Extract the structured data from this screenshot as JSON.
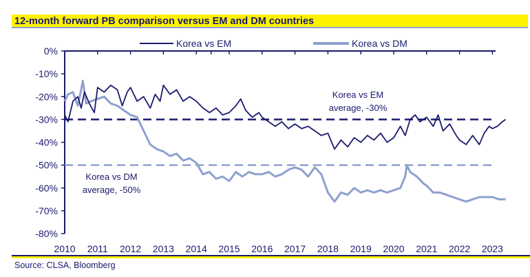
{
  "chart_data": {
    "type": "line",
    "title": "12-month forward PB comparison versus EM and DM countries",
    "source": "Source: CLSA, Bloomberg",
    "xlim": [
      2010,
      2023.5
    ],
    "ylim": [
      -80,
      0
    ],
    "x_ticks": [
      "2010",
      "2011",
      "2012",
      "2013",
      "2014",
      "2015",
      "2016",
      "2017",
      "2018",
      "2019",
      "2020",
      "2021",
      "2022",
      "2023"
    ],
    "y_ticks": [
      "0%",
      "-10%",
      "-20%",
      "-30%",
      "-40%",
      "-50%",
      "-60%",
      "-70%",
      "-80%"
    ],
    "legend": {
      "position": "top",
      "entries": [
        "Korea vs EM",
        "Korea vs DM"
      ]
    },
    "colors": {
      "em": "#1a1a6e",
      "dm": "#8ea0cf"
    },
    "series": [
      {
        "name": "Korea vs EM",
        "average": -30,
        "points": [
          [
            2010.0,
            -28
          ],
          [
            2010.1,
            -31
          ],
          [
            2010.25,
            -22
          ],
          [
            2010.4,
            -20
          ],
          [
            2010.5,
            -25
          ],
          [
            2010.6,
            -18
          ],
          [
            2010.75,
            -23
          ],
          [
            2010.9,
            -27
          ],
          [
            2011.0,
            -16
          ],
          [
            2011.2,
            -18
          ],
          [
            2011.4,
            -15
          ],
          [
            2011.6,
            -17
          ],
          [
            2011.75,
            -24
          ],
          [
            2011.9,
            -18
          ],
          [
            2012.0,
            -16
          ],
          [
            2012.2,
            -22
          ],
          [
            2012.4,
            -20
          ],
          [
            2012.6,
            -25
          ],
          [
            2012.75,
            -19
          ],
          [
            2012.9,
            -22
          ],
          [
            2013.0,
            -15
          ],
          [
            2013.2,
            -19
          ],
          [
            2013.4,
            -17
          ],
          [
            2013.6,
            -22
          ],
          [
            2013.8,
            -20
          ],
          [
            2014.0,
            -22
          ],
          [
            2014.2,
            -25
          ],
          [
            2014.4,
            -27
          ],
          [
            2014.6,
            -25
          ],
          [
            2014.8,
            -28
          ],
          [
            2015.0,
            -27
          ],
          [
            2015.2,
            -24
          ],
          [
            2015.35,
            -21
          ],
          [
            2015.5,
            -26
          ],
          [
            2015.7,
            -29
          ],
          [
            2015.9,
            -27
          ],
          [
            2016.0,
            -29
          ],
          [
            2016.2,
            -31
          ],
          [
            2016.4,
            -33
          ],
          [
            2016.6,
            -31
          ],
          [
            2016.8,
            -34
          ],
          [
            2017.0,
            -32
          ],
          [
            2017.2,
            -34
          ],
          [
            2017.4,
            -33
          ],
          [
            2017.6,
            -35
          ],
          [
            2017.8,
            -37
          ],
          [
            2018.0,
            -36
          ],
          [
            2018.2,
            -43
          ],
          [
            2018.4,
            -39
          ],
          [
            2018.6,
            -42
          ],
          [
            2018.8,
            -38
          ],
          [
            2019.0,
            -40
          ],
          [
            2019.2,
            -37
          ],
          [
            2019.4,
            -39
          ],
          [
            2019.6,
            -36
          ],
          [
            2019.8,
            -40
          ],
          [
            2020.0,
            -38
          ],
          [
            2020.2,
            -33
          ],
          [
            2020.35,
            -37
          ],
          [
            2020.5,
            -30
          ],
          [
            2020.65,
            -28
          ],
          [
            2020.8,
            -31
          ],
          [
            2021.0,
            -29
          ],
          [
            2021.2,
            -33
          ],
          [
            2021.35,
            -28
          ],
          [
            2021.5,
            -35
          ],
          [
            2021.7,
            -32
          ],
          [
            2021.9,
            -37
          ],
          [
            2022.0,
            -39
          ],
          [
            2022.2,
            -41
          ],
          [
            2022.4,
            -37
          ],
          [
            2022.6,
            -41
          ],
          [
            2022.75,
            -36
          ],
          [
            2022.9,
            -33
          ],
          [
            2023.0,
            -34
          ],
          [
            2023.15,
            -33
          ],
          [
            2023.3,
            -31
          ],
          [
            2023.4,
            -30
          ]
        ]
      },
      {
        "name": "Korea vs DM",
        "average": -50,
        "points": [
          [
            2010.0,
            -22
          ],
          [
            2010.1,
            -19
          ],
          [
            2010.25,
            -18
          ],
          [
            2010.4,
            -24
          ],
          [
            2010.5,
            -17
          ],
          [
            2010.55,
            -13
          ],
          [
            2010.65,
            -23
          ],
          [
            2010.8,
            -22
          ],
          [
            2011.0,
            -21
          ],
          [
            2011.2,
            -20
          ],
          [
            2011.4,
            -23
          ],
          [
            2011.6,
            -24
          ],
          [
            2011.8,
            -26
          ],
          [
            2012.0,
            -28
          ],
          [
            2012.2,
            -29
          ],
          [
            2012.4,
            -35
          ],
          [
            2012.6,
            -41
          ],
          [
            2012.8,
            -43
          ],
          [
            2013.0,
            -44
          ],
          [
            2013.2,
            -46
          ],
          [
            2013.4,
            -45
          ],
          [
            2013.6,
            -48
          ],
          [
            2013.8,
            -47
          ],
          [
            2014.0,
            -49
          ],
          [
            2014.2,
            -54
          ],
          [
            2014.4,
            -53
          ],
          [
            2014.6,
            -56
          ],
          [
            2014.8,
            -55
          ],
          [
            2015.0,
            -57
          ],
          [
            2015.2,
            -53
          ],
          [
            2015.4,
            -55
          ],
          [
            2015.6,
            -53
          ],
          [
            2015.8,
            -54
          ],
          [
            2016.0,
            -54
          ],
          [
            2016.2,
            -53
          ],
          [
            2016.4,
            -55
          ],
          [
            2016.6,
            -54
          ],
          [
            2016.8,
            -52
          ],
          [
            2017.0,
            -51
          ],
          [
            2017.2,
            -52
          ],
          [
            2017.4,
            -55
          ],
          [
            2017.6,
            -51
          ],
          [
            2017.8,
            -54
          ],
          [
            2018.0,
            -62
          ],
          [
            2018.2,
            -66
          ],
          [
            2018.4,
            -62
          ],
          [
            2018.6,
            -63
          ],
          [
            2018.8,
            -60
          ],
          [
            2019.0,
            -62
          ],
          [
            2019.2,
            -61
          ],
          [
            2019.4,
            -62
          ],
          [
            2019.6,
            -61
          ],
          [
            2019.8,
            -62
          ],
          [
            2020.0,
            -61
          ],
          [
            2020.2,
            -60
          ],
          [
            2020.35,
            -55
          ],
          [
            2020.4,
            -50
          ],
          [
            2020.5,
            -53
          ],
          [
            2020.7,
            -55
          ],
          [
            2020.9,
            -58
          ],
          [
            2021.0,
            -59
          ],
          [
            2021.2,
            -62
          ],
          [
            2021.4,
            -62
          ],
          [
            2021.6,
            -63
          ],
          [
            2021.8,
            -64
          ],
          [
            2022.0,
            -65
          ],
          [
            2022.2,
            -66
          ],
          [
            2022.4,
            -65
          ],
          [
            2022.6,
            -64
          ],
          [
            2022.8,
            -64
          ],
          [
            2023.0,
            -64
          ],
          [
            2023.2,
            -65
          ],
          [
            2023.4,
            -65
          ]
        ]
      }
    ],
    "annotations": {
      "em": [
        "Korea vs EM",
        "average, -30%"
      ],
      "dm": [
        "Korea vs DM",
        "average, -50%"
      ]
    }
  }
}
